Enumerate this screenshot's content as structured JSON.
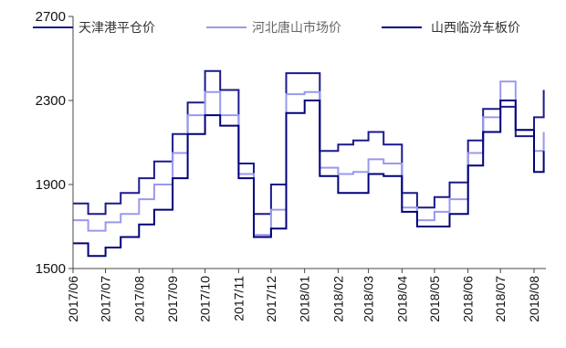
{
  "chart_data": {
    "type": "line",
    "x": [
      "2017/06/01",
      "2017/06/15",
      "2017/07/01",
      "2017/07/15",
      "2017/08/01",
      "2017/08/15",
      "2017/09/01",
      "2017/09/15",
      "2017/10/01",
      "2017/10/15",
      "2017/11/01",
      "2017/11/15",
      "2017/12/01",
      "2017/12/15",
      "2018/01/01",
      "2018/01/15",
      "2018/02/01",
      "2018/02/15",
      "2018/03/01",
      "2018/03/15",
      "2018/04/01",
      "2018/04/15",
      "2018/05/01",
      "2018/05/15",
      "2018/06/01",
      "2018/06/15",
      "2018/07/01",
      "2018/07/15",
      "2018/08/01",
      "2018/08/10"
    ],
    "x_tick_labels": [
      "2017/06",
      "2017/07",
      "2017/08",
      "2017/09",
      "2017/10",
      "2017/11",
      "2017/12",
      "2018/01",
      "2018/02",
      "2018/03",
      "2018/04",
      "2018/05",
      "2018/06",
      "2018/07",
      "2018/08"
    ],
    "series": [
      {
        "name": "天津港平仓价",
        "color": "#1a1a8c",
        "values": [
          1810,
          1760,
          1810,
          1860,
          1930,
          2010,
          2140,
          2290,
          2440,
          2350,
          2000,
          1760,
          1900,
          2430,
          2430,
          2060,
          2090,
          2110,
          2150,
          2090,
          1860,
          1790,
          1840,
          1910,
          2110,
          2260,
          2270,
          2130,
          2220,
          2350
        ]
      },
      {
        "name": "河北唐山市场价",
        "color": "#9999ee",
        "values": [
          1730,
          1680,
          1720,
          1760,
          1830,
          1900,
          2050,
          2230,
          2340,
          2230,
          1950,
          1660,
          1780,
          2330,
          2340,
          1980,
          1950,
          1960,
          2020,
          2000,
          1790,
          1730,
          1770,
          1830,
          2050,
          2220,
          2390,
          2160,
          2060,
          2150
        ]
      },
      {
        "name": "山西临汾车板价",
        "color": "#00007a",
        "values": [
          1620,
          1560,
          1600,
          1650,
          1710,
          1780,
          1930,
          2140,
          2230,
          2180,
          1930,
          1650,
          1690,
          2240,
          2300,
          1940,
          1860,
          1860,
          1950,
          1940,
          1770,
          1700,
          1700,
          1760,
          1990,
          2150,
          2300,
          2160,
          1960,
          2060
        ]
      }
    ],
    "ylim": [
      1500,
      2700
    ],
    "yticks": [
      1500,
      1900,
      2300,
      2700
    ],
    "legend": "top",
    "grid": false
  }
}
